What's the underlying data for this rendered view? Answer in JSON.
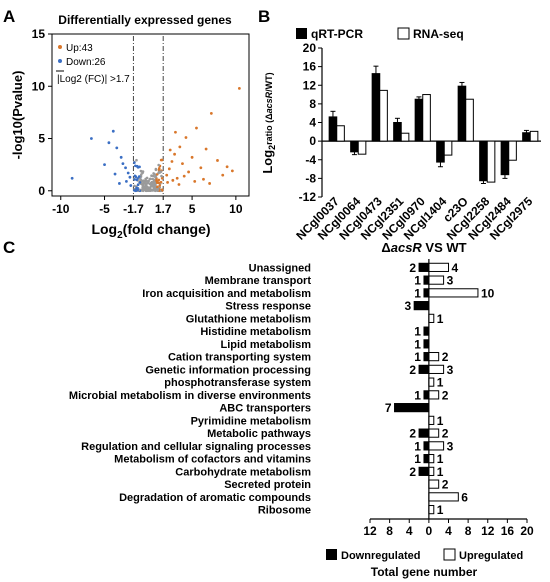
{
  "panels": {
    "a": {
      "letter": "A"
    },
    "b": {
      "letter": "B"
    },
    "c": {
      "letter": "C"
    }
  },
  "chart_data": [
    {
      "panel": "A",
      "type": "scatter",
      "title": "Differentially expressed genes",
      "xlabel": "Log2(fold change)",
      "xlabel_parts": {
        "base": "Log",
        "sub": "2",
        "rest": "(fold change)"
      },
      "ylabel": "-log10(Pvalue)",
      "xlim": [
        -11,
        11.5
      ],
      "ylim": [
        -0.5,
        15
      ],
      "xticks": [
        {
          "v": -10,
          "t": "-10"
        },
        {
          "v": -5,
          "t": "-5"
        },
        {
          "v": -1.7,
          "t": "-1.7"
        },
        {
          "v": 1.7,
          "t": "1.7"
        },
        {
          "v": 5,
          "t": "5"
        },
        {
          "v": 10,
          "t": "10"
        }
      ],
      "yticks": [
        {
          "v": 0,
          "t": "0"
        },
        {
          "v": 5,
          "t": "5"
        },
        {
          "v": 10,
          "t": "10"
        },
        {
          "v": 15,
          "t": "15"
        }
      ],
      "legend": [
        {
          "label": "Up:",
          "count": "43",
          "color": "#d9772b"
        },
        {
          "label": "Down:",
          "count": "26",
          "color": "#3b6fc4"
        },
        {
          "label": "|Log2 (FC)| >1.7",
          "count": "",
          "color": "#000000"
        }
      ],
      "thresholds": [
        -1.7,
        1.7
      ],
      "colors": {
        "up": "#d9772b",
        "down": "#3b6fc4",
        "ns": "#9a9a9a"
      },
      "highlight_points": [
        {
          "x": -4.0,
          "y": 5.7,
          "c": "down"
        },
        {
          "x": -4.5,
          "y": 4.6,
          "c": "down"
        },
        {
          "x": -3.6,
          "y": 4.1,
          "c": "down"
        },
        {
          "x": -5.0,
          "y": 2.5,
          "c": "down"
        },
        {
          "x": -6.5,
          "y": 5.0,
          "c": "down"
        },
        {
          "x": -8.7,
          "y": 1.2,
          "c": "down"
        },
        {
          "x": -3.1,
          "y": 3.2,
          "c": "down"
        },
        {
          "x": -2.6,
          "y": 2.2,
          "c": "down"
        },
        {
          "x": -2.3,
          "y": 1.7,
          "c": "down"
        },
        {
          "x": -2.9,
          "y": 2.6,
          "c": "down"
        },
        {
          "x": -2.1,
          "y": 1.3,
          "c": "down"
        },
        {
          "x": -3.8,
          "y": 1.6,
          "c": "down"
        },
        {
          "x": -2.5,
          "y": 0.9,
          "c": "down"
        },
        {
          "x": -3.3,
          "y": 0.7,
          "c": "down"
        },
        {
          "x": -2.0,
          "y": 0.5,
          "c": "down"
        },
        {
          "x": 2.1,
          "y": 1.5,
          "c": "up"
        },
        {
          "x": 2.4,
          "y": 2.1,
          "c": "up"
        },
        {
          "x": 2.7,
          "y": 2.8,
          "c": "up"
        },
        {
          "x": 3.0,
          "y": 3.5,
          "c": "up"
        },
        {
          "x": 3.3,
          "y": 1.2,
          "c": "up"
        },
        {
          "x": 3.6,
          "y": 4.2,
          "c": "up"
        },
        {
          "x": 3.9,
          "y": 2.6,
          "c": "up"
        },
        {
          "x": 4.3,
          "y": 5.1,
          "c": "up"
        },
        {
          "x": 4.6,
          "y": 1.8,
          "c": "up"
        },
        {
          "x": 5.0,
          "y": 3.2,
          "c": "up"
        },
        {
          "x": 5.5,
          "y": 6.0,
          "c": "up"
        },
        {
          "x": 6.0,
          "y": 2.2,
          "c": "up"
        },
        {
          "x": 6.6,
          "y": 4.0,
          "c": "up"
        },
        {
          "x": 7.2,
          "y": 7.4,
          "c": "up"
        },
        {
          "x": 7.9,
          "y": 2.9,
          "c": "up"
        },
        {
          "x": 8.5,
          "y": 1.5,
          "c": "up"
        },
        {
          "x": 9.0,
          "y": 2.3,
          "c": "up"
        },
        {
          "x": 9.6,
          "y": 1.9,
          "c": "up"
        },
        {
          "x": 10.4,
          "y": 9.8,
          "c": "up"
        },
        {
          "x": 2.2,
          "y": 0.8,
          "c": "up"
        },
        {
          "x": 2.8,
          "y": 1.0,
          "c": "up"
        },
        {
          "x": 3.5,
          "y": 0.6,
          "c": "up"
        },
        {
          "x": 4.1,
          "y": 1.4,
          "c": "up"
        },
        {
          "x": 5.3,
          "y": 0.9,
          "c": "up"
        },
        {
          "x": 6.3,
          "y": 1.1,
          "c": "up"
        },
        {
          "x": 7.0,
          "y": 0.7,
          "c": "up"
        },
        {
          "x": 2.5,
          "y": 3.9,
          "c": "up"
        },
        {
          "x": 3.1,
          "y": 5.6,
          "c": "up"
        }
      ],
      "ns_blob": {
        "x_min": -1.6,
        "x_max": 1.6,
        "y_max": 3.0,
        "count": 220
      }
    },
    {
      "panel": "B",
      "type": "bar",
      "ylabel": "Log2 ratio (ΔacsR/WT)",
      "ylabel_parts": {
        "base": "Log",
        "sub": "2",
        "mid": "ratio (",
        "delta": "Δ",
        "italic": "acsR",
        "end": "/WT)"
      },
      "ylim": [
        -12,
        20
      ],
      "yticks": [
        {
          "v": -12,
          "t": "-12"
        },
        {
          "v": -8,
          "t": "-8"
        },
        {
          "v": -4,
          "t": "-4"
        },
        {
          "v": 0,
          "t": "0"
        },
        {
          "v": 4,
          "t": "4"
        },
        {
          "v": 8,
          "t": "8"
        },
        {
          "v": 12,
          "t": "12"
        },
        {
          "v": 16,
          "t": "16"
        },
        {
          "v": 20,
          "t": "20"
        }
      ],
      "categories": [
        "NCgl0037",
        "NCgl0064",
        "NCgl0473",
        "NCgl2351",
        "NCgl0970",
        "NCgl1404",
        "c23O",
        "NCgl2258",
        "NCgl2484",
        "NCgl2975"
      ],
      "series": [
        {
          "name": "qRT-PCR",
          "fill": "#000000",
          "values": [
            5.2,
            -2.3,
            14.5,
            4.0,
            9.0,
            -4.5,
            11.8,
            -8.5,
            -7.2,
            1.8
          ],
          "errors": [
            1.2,
            0.6,
            1.6,
            0.9,
            0.5,
            1.0,
            0.8,
            0.6,
            0.8,
            0.5
          ]
        },
        {
          "name": "RNA-seq",
          "fill": "#ffffff",
          "values": [
            3.3,
            -2.8,
            10.9,
            1.7,
            10.0,
            -3.0,
            9.0,
            -8.8,
            -4.1,
            2.1
          ],
          "errors": [
            0,
            0,
            0,
            0,
            0,
            0,
            0,
            0,
            0,
            0
          ]
        }
      ],
      "legend_placement": "top"
    },
    {
      "panel": "C",
      "type": "bar",
      "orientation": "horizontal-diverging",
      "title": "ΔacsR VS WT",
      "title_parts": {
        "delta": "Δ",
        "italic": "acsR",
        "rest": " VS WT"
      },
      "xlabel": "Total gene number",
      "xlim": [
        -12,
        20
      ],
      "xticks": [
        {
          "v": -12,
          "t": "12"
        },
        {
          "v": -8,
          "t": "8"
        },
        {
          "v": -4,
          "t": "4"
        },
        {
          "v": 0,
          "t": "0"
        },
        {
          "v": 4,
          "t": "4"
        },
        {
          "v": 8,
          "t": "8"
        },
        {
          "v": 12,
          "t": "12"
        },
        {
          "v": 16,
          "t": "16"
        },
        {
          "v": 20,
          "t": "20"
        }
      ],
      "categories": [
        "Unassigned",
        "Membrane transport",
        "Iron acquisition and metabolism",
        "Stress response",
        "Glutathione metabolism",
        "Histidine metabolism",
        "Lipid metabolism",
        "Cation transporting system",
        "Genetic information processing",
        "phosphotransferase system",
        "Microbial metabolism in diverse environments",
        "ABC transporters",
        "Pyrimidine metabolism",
        "Metabolic pathways",
        "Regulation  and cellular signaling processes",
        "Metabolism of cofactors and vitamins",
        "Carbohydrate metabolism",
        "Secreted protein",
        "Degradation of aromatic compounds",
        "Ribosome"
      ],
      "series": [
        {
          "name": "Downregulated",
          "fill": "#000000",
          "values": [
            2,
            1,
            1,
            3,
            0,
            1,
            1,
            1,
            2,
            0,
            1,
            7,
            0,
            2,
            1,
            1,
            2,
            0,
            0,
            0
          ]
        },
        {
          "name": "Upregulated",
          "fill": "#ffffff",
          "values": [
            4,
            3,
            10,
            0,
            1,
            0,
            0,
            2,
            3,
            1,
            2,
            0,
            1,
            2,
            3,
            1,
            1,
            2,
            6,
            1
          ]
        }
      ],
      "legend_placement": "bottom"
    }
  ]
}
